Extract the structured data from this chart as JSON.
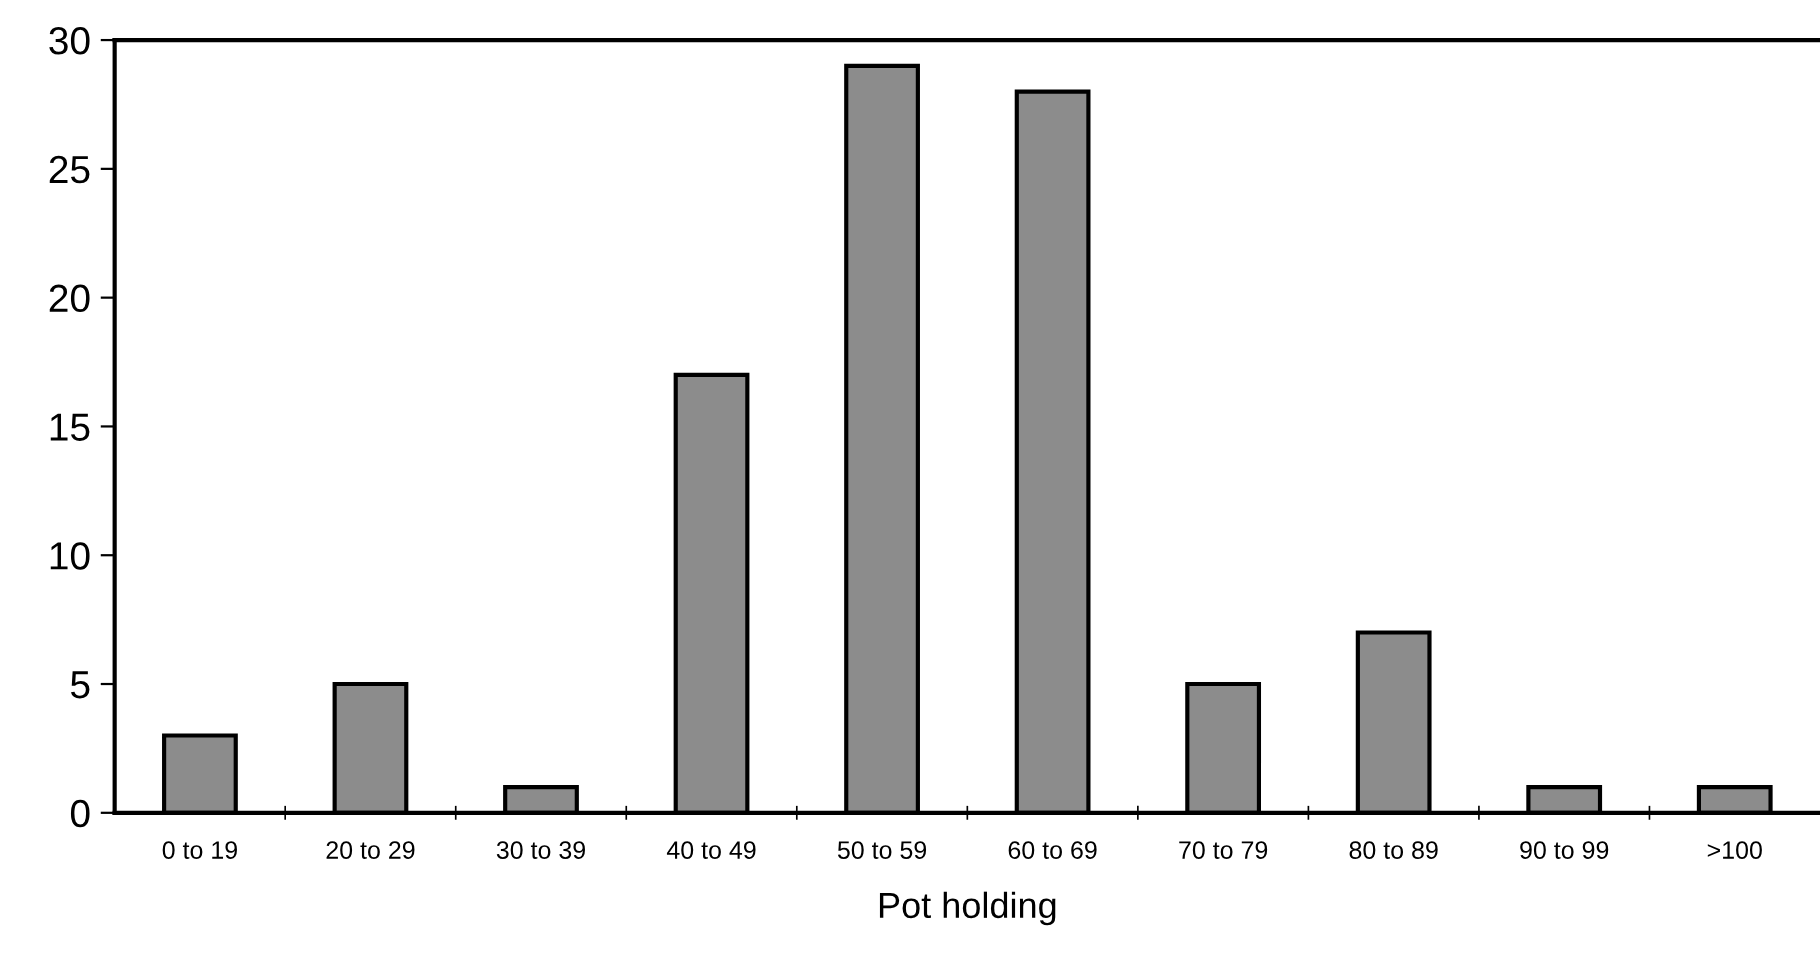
{
  "chart_data": {
    "type": "bar",
    "xlabel": "Pot holding",
    "categories": [
      "0 to 19",
      "20 to 29",
      "30 to 39",
      "40 to 49",
      "50 to 59",
      "60 to 69",
      "70 to 79",
      "80 to 89",
      "90 to 99",
      ">100"
    ],
    "values": [
      3,
      5,
      1,
      17,
      29,
      28,
      5,
      7,
      1,
      1
    ],
    "color": "#8c8c8c",
    "ylim": [
      0,
      30
    ],
    "yticks": [
      0,
      5,
      10,
      15,
      20,
      25,
      30
    ],
    "grid": false,
    "legend": false
  }
}
